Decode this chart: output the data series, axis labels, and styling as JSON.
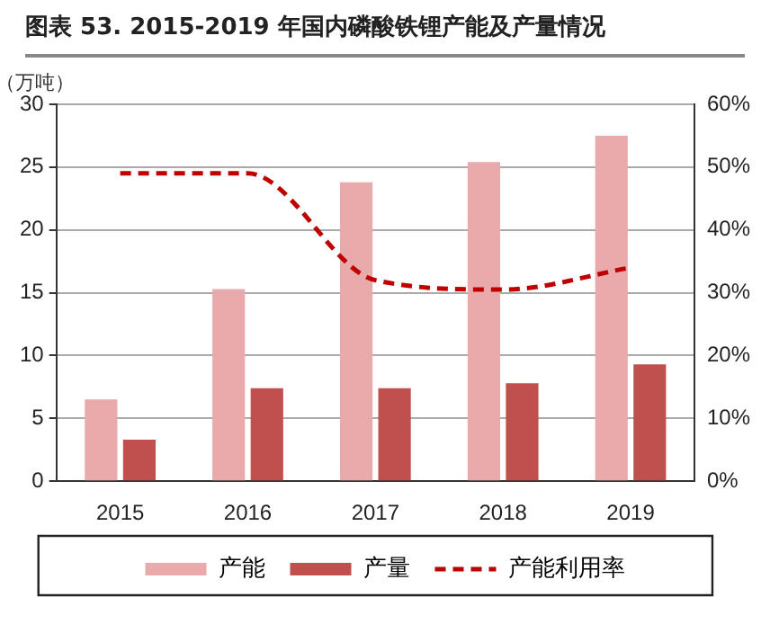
{
  "chart_data": {
    "type": "bar",
    "title": "图表 53. 2015-2019 年国内磷酸铁锂产能及产量情况",
    "ylabel": "（万吨）",
    "categories": [
      "2015",
      "2016",
      "2017",
      "2018",
      "2019"
    ],
    "series": [
      {
        "name": "产能",
        "color": "#e8aaaa",
        "values": [
          6.5,
          15.3,
          23.8,
          25.4,
          27.5
        ]
      },
      {
        "name": "产量",
        "color": "#c0504d",
        "values": [
          3.3,
          7.4,
          7.4,
          7.8,
          9.3
        ]
      },
      {
        "name": "产能利用率",
        "type": "line",
        "axis": "y2",
        "color": "#c00000",
        "line_style": "dashed",
        "marker": "none",
        "values": [
          49,
          49,
          32,
          30.5,
          34
        ]
      }
    ],
    "ylim": [
      0,
      30
    ],
    "yticks": [
      0,
      5,
      10,
      15,
      20,
      25,
      30
    ],
    "y2lim": [
      0,
      60
    ],
    "y2ticks": [
      {
        "value": 0,
        "label": "0%"
      },
      {
        "value": 10,
        "label": "10%"
      },
      {
        "value": 20,
        "label": "20%"
      },
      {
        "value": 30,
        "label": "30%"
      },
      {
        "value": 40,
        "label": "40%"
      },
      {
        "value": 50,
        "label": "50%"
      },
      {
        "value": 60,
        "label": "60%"
      }
    ],
    "grid": "y",
    "legend": "bottom"
  }
}
